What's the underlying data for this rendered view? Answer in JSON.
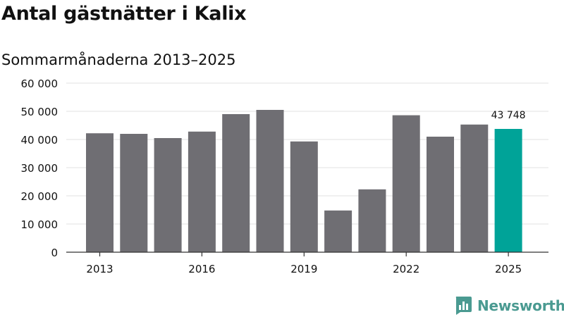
{
  "title": "Antal gästnätter i Kalix",
  "subtitle": "Sommarmånaderna 2013–2025",
  "brand": {
    "name": "Newsworthy",
    "color": "#4a9a91"
  },
  "colors": {
    "bar": "#6f6e73",
    "highlight": "#00a398",
    "grid": "#e2e2e2",
    "axis": "#333333",
    "text": "#111111"
  },
  "chart_data": {
    "type": "bar",
    "categories": [
      "2013",
      "2014",
      "2015",
      "2016",
      "2017",
      "2018",
      "2019",
      "2020",
      "2021",
      "2022",
      "2023",
      "2024",
      "2025"
    ],
    "values": [
      42200,
      42000,
      40500,
      42800,
      49000,
      50500,
      39300,
      14800,
      22300,
      48600,
      41000,
      45300,
      43748
    ],
    "highlight_index": 12,
    "data_labels": [
      {
        "index": 12,
        "text": "43 748"
      }
    ],
    "title": "Antal gästnätter i Kalix",
    "subtitle": "Sommarmånaderna 2013–2025",
    "xlabel": "",
    "ylabel": "",
    "ylim": [
      0,
      60000
    ],
    "yticks": [
      0,
      10000,
      20000,
      30000,
      40000,
      50000,
      60000
    ],
    "ytick_labels": [
      "0",
      "10 000",
      "20 000",
      "30 000",
      "40 000",
      "50 000",
      "60 000"
    ],
    "xtick_labels": [
      "2013",
      "2016",
      "2019",
      "2022",
      "2025"
    ],
    "grid": true,
    "legend": "none"
  }
}
